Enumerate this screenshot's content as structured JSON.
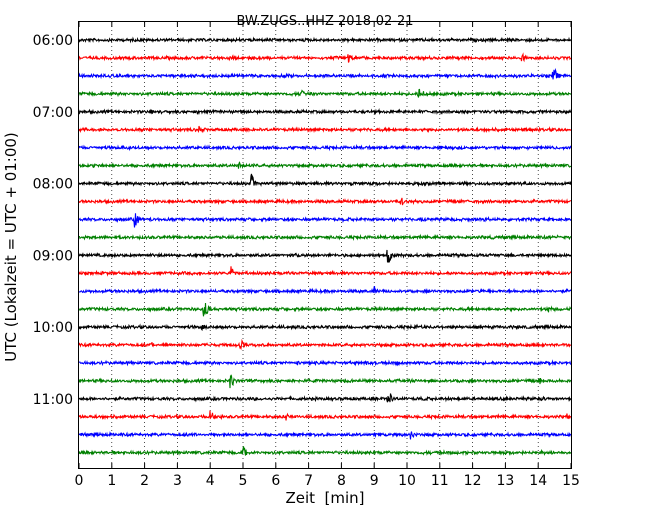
{
  "chart_data": {
    "type": "line",
    "title": "BW.ZUGS..HHZ 2018-02-21",
    "xlabel": "Zeit  [min]",
    "ylabel": "UTC (Lokalzeit = UTC + 01:00)",
    "xlim": [
      0,
      15
    ],
    "xticks": [
      0,
      1,
      2,
      3,
      4,
      5,
      6,
      7,
      8,
      9,
      10,
      11,
      12,
      13,
      14,
      15
    ],
    "yticks": [
      "06:00",
      "07:00",
      "08:00",
      "09:00",
      "10:00",
      "11:00"
    ],
    "grid": "vertical dotted",
    "trace_interval_min": 15,
    "trace_colors": [
      "#000000",
      "#ff0000",
      "#0000ff",
      "#008000"
    ],
    "rows": [
      {
        "start": "06:00",
        "events": [
          [
            14.95,
            3
          ]
        ]
      },
      {
        "start": "06:15",
        "events": [
          [
            4.7,
            6
          ],
          [
            8.2,
            7
          ],
          [
            13.5,
            8
          ]
        ]
      },
      {
        "start": "06:30",
        "events": [
          [
            11.2,
            4
          ],
          [
            14.45,
            13
          ]
        ]
      },
      {
        "start": "06:45",
        "events": [
          [
            6.75,
            7
          ],
          [
            10.35,
            9
          ],
          [
            10.5,
            5
          ]
        ]
      },
      {
        "start": "07:00",
        "events": [
          [
            2.2,
            4
          ],
          [
            3.6,
            4
          ],
          [
            4.9,
            4
          ],
          [
            9.9,
            3
          ],
          [
            13.4,
            3
          ]
        ]
      },
      {
        "start": "07:15",
        "events": [
          [
            3.65,
            6
          ],
          [
            5.3,
            3
          ],
          [
            13.6,
            3
          ]
        ]
      },
      {
        "start": "07:30",
        "events": [
          [
            9.3,
            3
          ],
          [
            11.0,
            4
          ],
          [
            14.5,
            3
          ]
        ]
      },
      {
        "start": "07:45",
        "events": [
          [
            0.4,
            4
          ],
          [
            4.85,
            6
          ]
        ]
      },
      {
        "start": "08:00",
        "events": [
          [
            5.25,
            13
          ],
          [
            8.3,
            3
          ],
          [
            13.1,
            3
          ]
        ]
      },
      {
        "start": "08:15",
        "events": [
          [
            9.8,
            7
          ],
          [
            13.3,
            3
          ]
        ]
      },
      {
        "start": "08:30",
        "events": [
          [
            1.7,
            13
          ],
          [
            8.05,
            3
          ],
          [
            10.45,
            4
          ],
          [
            12.35,
            3
          ]
        ]
      },
      {
        "start": "08:45",
        "events": [
          [
            3.9,
            3
          ],
          [
            14.6,
            4
          ]
        ]
      },
      {
        "start": "09:00",
        "events": [
          [
            2.45,
            3
          ],
          [
            6.6,
            4
          ],
          [
            9.4,
            14
          ],
          [
            12.2,
            3
          ]
        ]
      },
      {
        "start": "09:15",
        "events": [
          [
            4.6,
            11
          ],
          [
            6.4,
            3
          ],
          [
            15.0,
            6
          ]
        ]
      },
      {
        "start": "09:30",
        "events": [
          [
            9.0,
            6
          ],
          [
            12.2,
            3
          ]
        ]
      },
      {
        "start": "09:45",
        "events": [
          [
            3.8,
            16
          ],
          [
            14.3,
            6
          ]
        ]
      },
      {
        "start": "10:00",
        "events": [
          [
            3.75,
            5
          ],
          [
            10.25,
            4
          ],
          [
            13.35,
            3
          ]
        ]
      },
      {
        "start": "10:15",
        "events": [
          [
            2.2,
            4
          ],
          [
            4.9,
            8
          ],
          [
            14.8,
            3
          ]
        ]
      },
      {
        "start": "10:30",
        "events": [
          [
            6.65,
            4
          ],
          [
            8.7,
            6
          ],
          [
            9.7,
            3
          ]
        ]
      },
      {
        "start": "10:45",
        "events": [
          [
            4.6,
            14
          ],
          [
            14.05,
            5
          ]
        ]
      },
      {
        "start": "11:00",
        "events": [
          [
            9.4,
            16
          ],
          [
            10.5,
            3
          ],
          [
            14.15,
            3
          ]
        ]
      },
      {
        "start": "11:15",
        "events": [
          [
            4.0,
            12
          ],
          [
            6.3,
            5
          ],
          [
            14.85,
            5
          ]
        ]
      },
      {
        "start": "11:30",
        "events": [
          [
            9.0,
            6
          ],
          [
            10.1,
            7
          ]
        ]
      },
      {
        "start": "11:45",
        "events": [
          [
            5.0,
            13
          ],
          [
            14.1,
            4
          ]
        ]
      }
    ]
  }
}
